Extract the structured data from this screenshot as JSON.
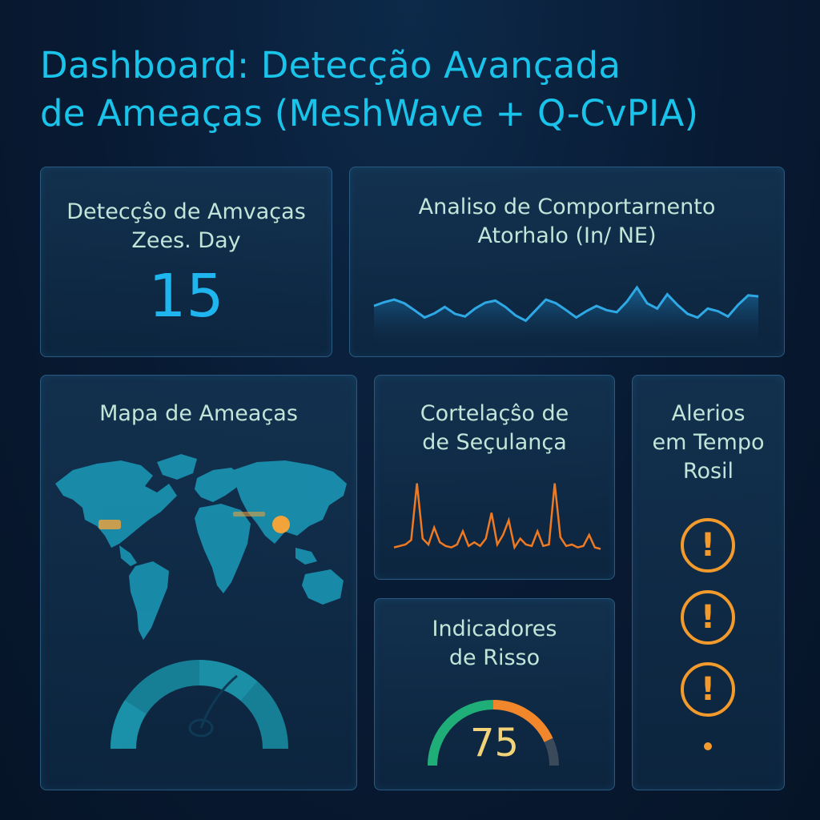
{
  "header": {
    "title_line1": "Dashboard: Detecção Avançada",
    "title_line2": "de Ameaças (MeshWave + Q-CvPIA)"
  },
  "detection": {
    "title_line1": "Detecçŝo de Amvaças",
    "title_line2": "Zees. Day",
    "value": "15"
  },
  "behavior": {
    "title_line1": "Analiso de Comportarnento",
    "title_line2": "Atorhalo (In/ NE)",
    "line_color": "#2ea9e6",
    "series": [
      0.5,
      0.57,
      0.62,
      0.55,
      0.42,
      0.28,
      0.36,
      0.48,
      0.35,
      0.3,
      0.45,
      0.56,
      0.6,
      0.48,
      0.32,
      0.22,
      0.42,
      0.62,
      0.55,
      0.42,
      0.28,
      0.4,
      0.5,
      0.42,
      0.38,
      0.58,
      0.85,
      0.55,
      0.45,
      0.72,
      0.52,
      0.35,
      0.28,
      0.45,
      0.4,
      0.3,
      0.52,
      0.7,
      0.68
    ]
  },
  "map": {
    "title": "Mapa de Ameaças",
    "land_color": "#1a8fae",
    "hotspot_color": "#f2a43a",
    "gauge_color": "#167e95"
  },
  "correlation": {
    "title_line1": "Cortelaçŝo de",
    "title_line2": "de Seçulança",
    "line_color": "#f07a22",
    "series": [
      0.08,
      0.1,
      0.12,
      0.18,
      0.95,
      0.2,
      0.12,
      0.35,
      0.15,
      0.1,
      0.08,
      0.12,
      0.3,
      0.1,
      0.15,
      0.1,
      0.2,
      0.55,
      0.12,
      0.25,
      0.45,
      0.08,
      0.2,
      0.12,
      0.1,
      0.3,
      0.1,
      0.12,
      0.95,
      0.22,
      0.1,
      0.12,
      0.08,
      0.1,
      0.25,
      0.08,
      0.06
    ]
  },
  "risk": {
    "title_line1": "Indicadores",
    "title_line2": "de Risso",
    "value": "75",
    "level": 0.75,
    "color_low": "#1fae78",
    "color_high": "#f2862a"
  },
  "alerts": {
    "title_line1": "Alerios",
    "title_line2": "em Tempo",
    "title_line3": "Rosil",
    "icon_glyph": "!",
    "alert_color": "#f29a2b"
  }
}
